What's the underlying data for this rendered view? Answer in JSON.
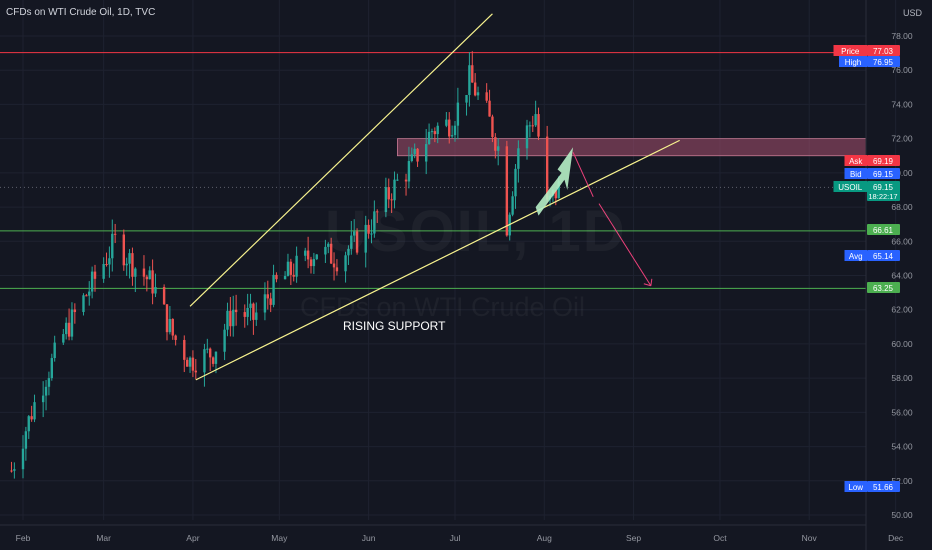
{
  "header": {
    "title": "CFDs on WTI Crude Oil, 1D, TVC"
  },
  "watermark": {
    "symbol": "USOIL, 1D",
    "name": "CFDs on WTI Crude Oil"
  },
  "price_axis": {
    "currency_top": "USD"
  },
  "annotation": {
    "text": "RISING SUPPORT"
  },
  "colors": {
    "background": "#141722",
    "up": "#26a69a",
    "down": "#ef5350",
    "trendline": "#f7f28e",
    "support": "#4caf50",
    "resistance": "#f23645",
    "zone": "#a7506f",
    "arrow_up": "#b6f0c6",
    "arrow_down": "#ec407a"
  },
  "chart_data": {
    "type": "candlestick",
    "symbol": "USOIL",
    "timeframe": "1D",
    "x_ticks": [
      "Feb",
      "Mar",
      "Apr",
      "May",
      "Jun",
      "Jul",
      "Aug",
      "Sep",
      "Oct",
      "Nov",
      "Dec"
    ],
    "y_ticks": [
      50.0,
      52.0,
      54.0,
      56.0,
      58.0,
      60.0,
      62.0,
      64.0,
      66.0,
      68.0,
      70.0,
      72.0,
      74.0,
      76.0,
      78.0
    ],
    "ylim": [
      49.4,
      79.2
    ],
    "grid": true,
    "price_labels": [
      {
        "name": "Price",
        "value": "77.03",
        "color": "#f23645"
      },
      {
        "name": "High",
        "value": "76.95",
        "color": "#2962ff"
      },
      {
        "name": "Ask",
        "value": "69.19",
        "color": "#f23645"
      },
      {
        "name": "Bid",
        "value": "69.15",
        "color": "#2962ff"
      },
      {
        "name": "USOIL",
        "value": "69.15",
        "extra": "18:22:17",
        "color": "#089981"
      },
      {
        "name": "",
        "value": "66.61",
        "color": "#4caf50"
      },
      {
        "name": "Avg",
        "value": "65.14",
        "color": "#2962ff"
      },
      {
        "name": "",
        "value": "63.25",
        "color": "#4caf50"
      },
      {
        "name": "Low",
        "value": "51.66",
        "color": "#2962ff"
      }
    ],
    "horizontal_lines": [
      {
        "value": 77.03,
        "color": "#f23645"
      },
      {
        "value": 66.61,
        "color": "#4caf50"
      },
      {
        "value": 63.25,
        "color": "#4caf50"
      }
    ],
    "zone": {
      "low": 71.0,
      "high": 72.0
    },
    "close_points": [
      [
        "Jan 27",
        52.6
      ],
      [
        "Feb 05",
        56.5
      ],
      [
        "Feb 15",
        60.5
      ],
      [
        "Feb 25",
        63.5
      ],
      [
        "Mar 05",
        66.0
      ],
      [
        "Mar 12",
        64.5
      ],
      [
        "Mar 18",
        63.5
      ],
      [
        "Mar 25",
        60.5
      ],
      [
        "Mar 31",
        59.0
      ],
      [
        "Apr 08",
        59.5
      ],
      [
        "Apr 15",
        62.0
      ],
      [
        "Apr 22",
        61.5
      ],
      [
        "Apr 30",
        63.5
      ],
      [
        "May 07",
        64.5
      ],
      [
        "May 14",
        65.5
      ],
      [
        "May 21",
        65.0
      ],
      [
        "May 28",
        66.0
      ],
      [
        "Jun 02",
        67.0
      ],
      [
        "Jun 09",
        69.0
      ],
      [
        "Jun 16",
        70.5
      ],
      [
        "Jun 23",
        72.5
      ],
      [
        "Jun 30",
        73.0
      ],
      [
        "Jul 06",
        75.5
      ],
      [
        "Jul 12",
        73.5
      ],
      [
        "Jul 16",
        71.5
      ],
      [
        "Jul 19",
        67.0
      ],
      [
        "Jul 23",
        71.5
      ],
      [
        "Jul 29",
        73.5
      ],
      [
        "Aug 02",
        68.0
      ],
      [
        "Aug 06",
        69.15
      ]
    ]
  }
}
